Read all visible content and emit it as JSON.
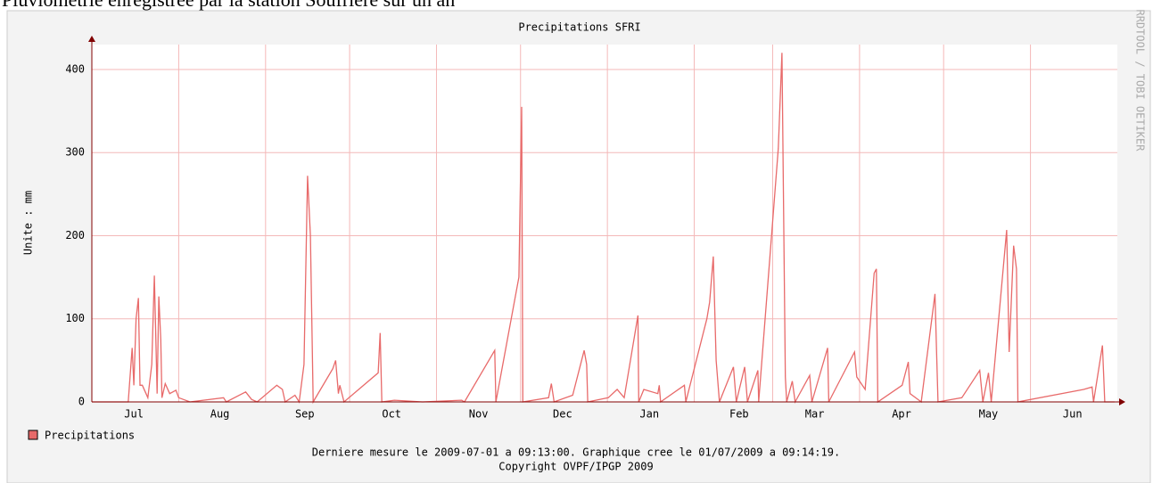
{
  "header": "Pluviométrie enregistrée par la station Soufrière sur un an",
  "chart_data": {
    "type": "line",
    "title": "Precipitations SFRI",
    "y_label": "Unite : mm",
    "watermark": "RRDTOOL / TOBI OETIKER",
    "footer": [
      "Derniere mesure le 2009-07-01 a 09:13:00. Graphique cree le 01/07/2009 a 09:14:19.",
      "Copyright OVPF/IPGP 2009"
    ],
    "grid": true,
    "xgrid": [
      31,
      62,
      92,
      123,
      153,
      184,
      215,
      243,
      274,
      304,
      335
    ],
    "xlim": [
      0,
      366
    ],
    "xticks": [
      {
        "value": 15,
        "label": "Jul"
      },
      {
        "value": 45.7,
        "label": "Aug"
      },
      {
        "value": 76,
        "label": "Sep"
      },
      {
        "value": 107,
        "label": "Oct"
      },
      {
        "value": 138,
        "label": "Nov"
      },
      {
        "value": 168,
        "label": "Dec"
      },
      {
        "value": 199,
        "label": "Jan"
      },
      {
        "value": 231,
        "label": "Feb"
      },
      {
        "value": 258,
        "label": "Mar"
      },
      {
        "value": 289,
        "label": "Apr"
      },
      {
        "value": 320,
        "label": "May"
      },
      {
        "value": 350,
        "label": "Jun"
      }
    ],
    "ylim": [
      0,
      430
    ],
    "yticks": [
      0,
      100,
      200,
      300,
      400
    ],
    "series": [
      {
        "name": "Precipitations",
        "color": "#e86a6a",
        "x": [
          0,
          13,
          14.4,
          15,
          15.8,
          16.6,
          17.2,
          18,
          20,
          21.4,
          22.3,
          23.3,
          23.9,
          24.6,
          25,
          26.2,
          27.8,
          30,
          31,
          35,
          47,
          48,
          54.9,
          57,
          59,
          66,
          68,
          69,
          72.5,
          74,
          75.7,
          77,
          78,
          79,
          86,
          87,
          88,
          88.5,
          90,
          102.2,
          102.9,
          103.5,
          108,
          118,
          132,
          133,
          143.8,
          144.2,
          152.4,
          153.4,
          153.8,
          163,
          164,
          165,
          171.6,
          175.7,
          176.6,
          177,
          184.3,
          187.5,
          190,
          194.9,
          195.2,
          197,
          202,
          202.5,
          203,
          211.5,
          212,
          219.5,
          220.5,
          221.8,
          222.8,
          224,
          229,
          230,
          233,
          234,
          237.7,
          238,
          245,
          246.3,
          247.5,
          248,
          250,
          251,
          256.2,
          257,
          262.6,
          263,
          272.2,
          273,
          276,
          279.2,
          280,
          280.5,
          289.2,
          291.4,
          292,
          296,
          300.9,
          301.5,
          302,
          310.5,
          316.9,
          318,
          320,
          321,
          326.5,
          327.4,
          329,
          330,
          330.5,
          354,
          357,
          357.5,
          360.7,
          361.5,
          365
        ],
        "values": [
          0,
          0,
          65,
          20,
          100,
          125,
          20,
          20,
          5,
          45,
          152,
          10,
          127,
          75,
          5,
          22,
          10,
          14,
          5,
          0,
          5,
          0,
          12,
          3,
          0,
          20,
          15,
          0,
          8,
          0,
          45,
          272,
          200,
          0,
          40,
          50,
          10,
          20,
          0,
          35,
          83,
          0,
          2,
          0,
          2,
          0,
          62,
          0,
          150,
          355,
          0,
          5,
          22,
          0,
          8,
          62,
          45,
          0,
          5,
          15,
          5,
          104,
          0,
          15,
          10,
          20,
          0,
          20,
          0,
          100,
          120,
          175,
          50,
          0,
          42,
          0,
          42,
          0,
          38,
          0,
          305,
          420,
          30,
          0,
          25,
          0,
          32,
          0,
          65,
          0,
          60,
          30,
          15,
          155,
          160,
          0,
          20,
          48,
          10,
          0,
          130,
          60,
          0,
          5,
          38,
          0,
          35,
          0,
          207,
          60,
          188,
          160,
          0,
          15,
          18,
          0,
          68,
          0,
          0
        ]
      }
    ]
  }
}
